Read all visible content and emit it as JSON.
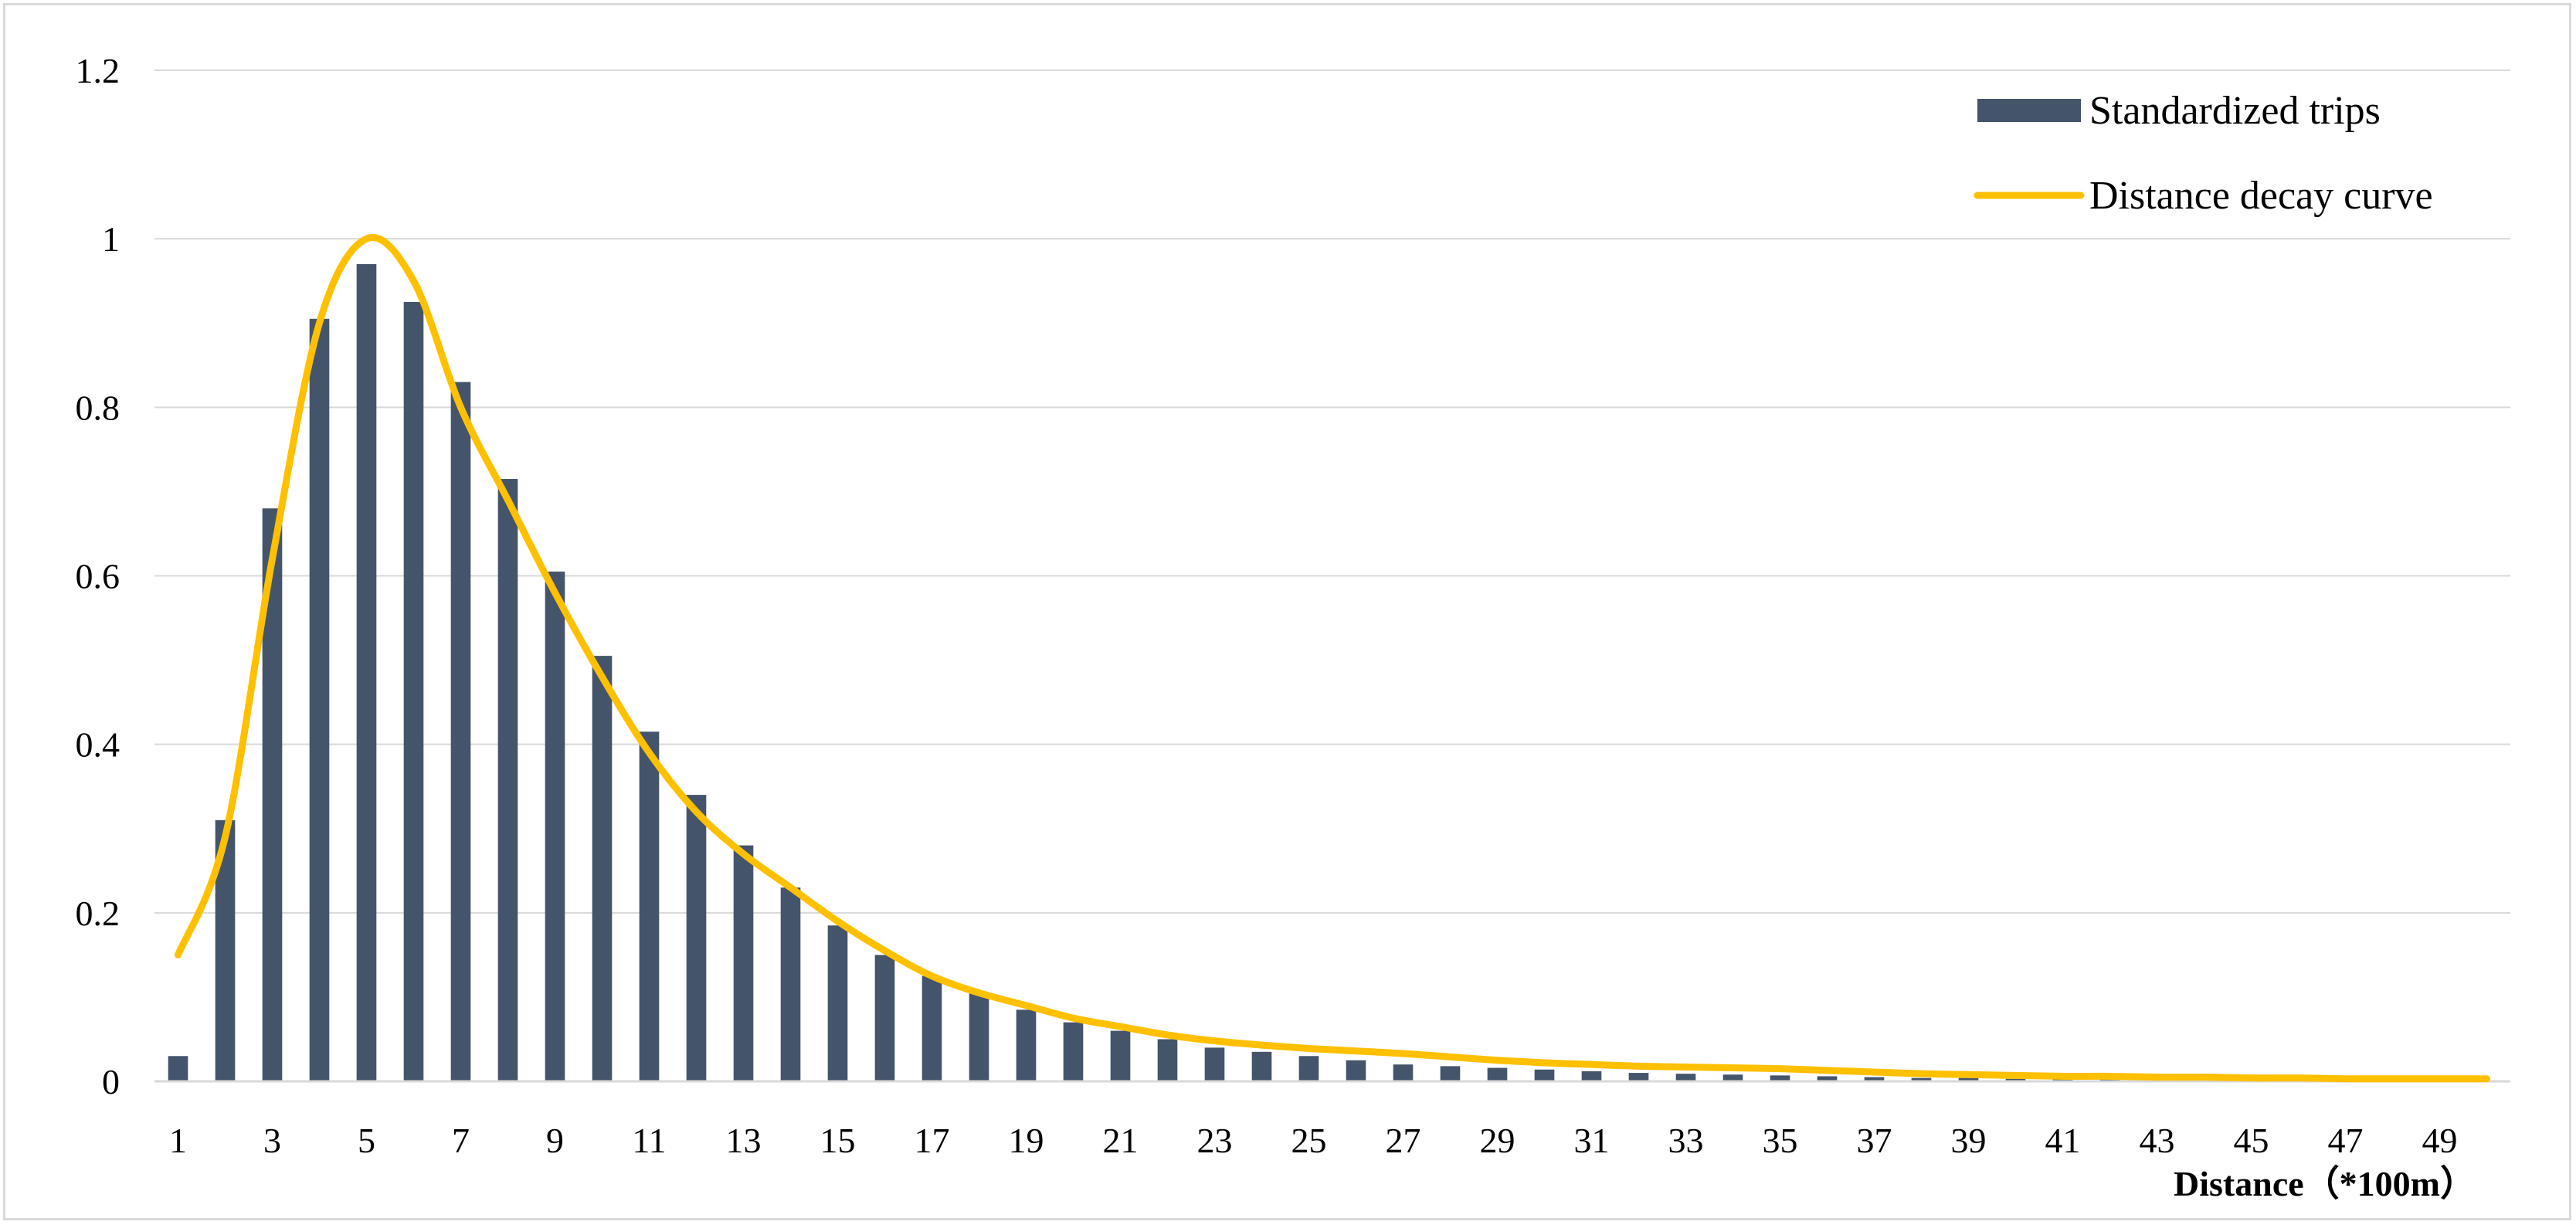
{
  "chart_data": {
    "type": "bar",
    "title": "",
    "xlabel": "Distance（*100m）",
    "ylabel": "",
    "ylim": [
      0,
      1.2
    ],
    "yticks": [
      "0",
      "0.2",
      "0.4",
      "0.6",
      "0.8",
      "1",
      "1.2"
    ],
    "xticks": [
      "1",
      "3",
      "5",
      "7",
      "9",
      "11",
      "13",
      "15",
      "17",
      "19",
      "21",
      "23",
      "25",
      "27",
      "29",
      "31",
      "33",
      "35",
      "37",
      "39",
      "41",
      "43",
      "45",
      "47",
      "49"
    ],
    "grid": true,
    "legend_position": "top-right",
    "bar_color": "#44546a",
    "line_color": "#ffc000",
    "categories": [
      1,
      2,
      3,
      4,
      5,
      6,
      7,
      8,
      9,
      10,
      11,
      12,
      13,
      14,
      15,
      16,
      17,
      18,
      19,
      20,
      21,
      22,
      23,
      24,
      25,
      26,
      27,
      28,
      29,
      30,
      31,
      32,
      33,
      34,
      35,
      36,
      37,
      38,
      39,
      40,
      41,
      42,
      43,
      44,
      45,
      46,
      47,
      48,
      49,
      50
    ],
    "series": [
      {
        "name": "Standardized trips",
        "type": "bar",
        "values": [
          0.03,
          0.31,
          0.68,
          0.905,
          0.97,
          0.925,
          0.83,
          0.715,
          0.605,
          0.505,
          0.415,
          0.34,
          0.28,
          0.23,
          0.185,
          0.15,
          0.125,
          0.105,
          0.085,
          0.07,
          0.06,
          0.05,
          0.04,
          0.035,
          0.03,
          0.025,
          0.02,
          0.018,
          0.016,
          0.014,
          0.012,
          0.01,
          0.009,
          0.008,
          0.007,
          0.006,
          0.005,
          0.004,
          0.004,
          0.003,
          0.003,
          0.003,
          0.002,
          0.002,
          0.002,
          0.002,
          0.002,
          0.001,
          0.001,
          0.001
        ]
      },
      {
        "name": "Distance decay curve",
        "type": "line",
        "values": [
          0.15,
          0.29,
          0.62,
          0.9,
          1.0,
          0.95,
          0.8,
          0.69,
          0.58,
          0.48,
          0.39,
          0.32,
          0.27,
          0.23,
          0.19,
          0.155,
          0.125,
          0.105,
          0.09,
          0.075,
          0.065,
          0.055,
          0.048,
          0.043,
          0.039,
          0.036,
          0.033,
          0.029,
          0.025,
          0.022,
          0.02,
          0.018,
          0.017,
          0.016,
          0.015,
          0.013,
          0.011,
          0.009,
          0.008,
          0.007,
          0.006,
          0.006,
          0.005,
          0.005,
          0.004,
          0.004,
          0.003,
          0.003,
          0.003,
          0.003
        ]
      }
    ]
  }
}
